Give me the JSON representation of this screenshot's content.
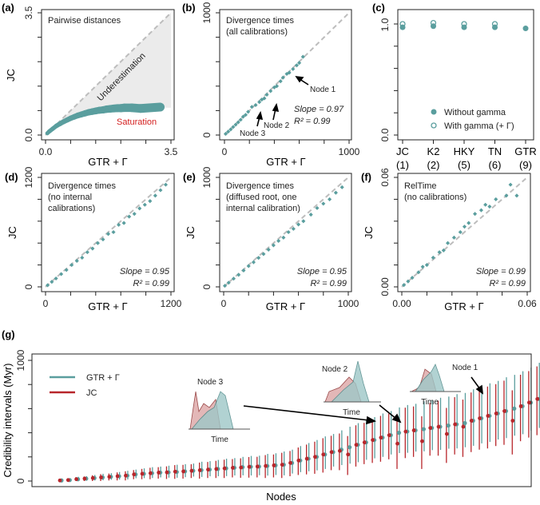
{
  "colors": {
    "teal": "#5a9e9e",
    "red": "#b8262b",
    "gray_dash": "#bdbdbd",
    "shade": "#ebebeb"
  },
  "chart_data": [
    {
      "id": "a",
      "panel_label": "(a)",
      "type": "scatter",
      "title": "Pairwise distances",
      "xlabel": "GTR + Γ",
      "ylabel": "JC",
      "xlim": [
        0,
        3.5
      ],
      "ylim": [
        0,
        3.5
      ],
      "xticks": [
        "0.0",
        "3.5"
      ],
      "yticks": [
        "0.0",
        "3.5"
      ],
      "region_labels": {
        "above": "Underestimation",
        "below": "Saturation"
      },
      "saturation_level": 0.78,
      "points": [
        [
          0.05,
          0.05
        ],
        [
          0.1,
          0.1
        ],
        [
          0.2,
          0.18
        ],
        [
          0.3,
          0.26
        ],
        [
          0.4,
          0.32
        ],
        [
          0.5,
          0.38
        ],
        [
          0.6,
          0.43
        ],
        [
          0.7,
          0.48
        ],
        [
          0.8,
          0.52
        ],
        [
          0.9,
          0.56
        ],
        [
          1.0,
          0.59
        ],
        [
          1.1,
          0.62
        ],
        [
          1.2,
          0.65
        ],
        [
          1.3,
          0.67
        ],
        [
          1.4,
          0.69
        ],
        [
          1.5,
          0.71
        ],
        [
          1.6,
          0.72
        ],
        [
          1.7,
          0.74
        ],
        [
          1.8,
          0.75
        ],
        [
          1.9,
          0.76
        ],
        [
          2.0,
          0.77
        ],
        [
          2.1,
          0.77
        ],
        [
          2.2,
          0.78
        ],
        [
          2.4,
          0.78
        ],
        [
          2.65,
          0.76
        ],
        [
          3.2,
          0.8
        ]
      ]
    },
    {
      "id": "b",
      "panel_label": "(b)",
      "type": "scatter",
      "title": [
        "Divergence times",
        "(all calibrations)"
      ],
      "xlabel": "GTR + Γ",
      "ylabel": "JC",
      "xlim": [
        0,
        1000
      ],
      "ylim": [
        0,
        1000
      ],
      "xticks": [
        "0",
        "1000"
      ],
      "yticks": [
        "0",
        "1000"
      ],
      "slope": "Slope = 0.97",
      "r2": "R² = 0.99",
      "annotations": [
        "Node 1",
        "Node 2",
        "Node 3"
      ],
      "points": [
        [
          10,
          10
        ],
        [
          30,
          28
        ],
        [
          50,
          46
        ],
        [
          70,
          66
        ],
        [
          90,
          85
        ],
        [
          110,
          104
        ],
        [
          130,
          125
        ],
        [
          150,
          150
        ],
        [
          170,
          165
        ],
        [
          190,
          190
        ],
        [
          220,
          230
        ],
        [
          250,
          245
        ],
        [
          280,
          270
        ],
        [
          300,
          290
        ],
        [
          320,
          300
        ],
        [
          340,
          330
        ],
        [
          370,
          360
        ],
        [
          400,
          390
        ],
        [
          420,
          400
        ],
        [
          450,
          440
        ],
        [
          470,
          470
        ],
        [
          500,
          500
        ],
        [
          520,
          510
        ],
        [
          550,
          540
        ],
        [
          580,
          570
        ],
        [
          600,
          590
        ],
        [
          630,
          640
        ]
      ]
    },
    {
      "id": "c",
      "panel_label": "(c)",
      "type": "scatter",
      "categories": [
        "JC",
        "K2",
        "HKY",
        "TN",
        "GTR"
      ],
      "category_params": [
        "(1)",
        "(2)",
        "(5)",
        "(6)",
        "(9)"
      ],
      "ylim": [
        0,
        1.0
      ],
      "yticks": [
        "0.0",
        "1.0"
      ],
      "legend": [
        "Without gamma",
        "With gamma (+ Γ)"
      ],
      "legend_position": "bottom-right",
      "series": [
        {
          "name": "Without gamma",
          "values": [
            0.97,
            0.98,
            0.97,
            0.97,
            0.96
          ]
        },
        {
          "name": "With gamma (+ Γ)",
          "values": [
            1.0,
            1.01,
            1.0,
            1.0,
            null
          ]
        }
      ]
    },
    {
      "id": "d",
      "panel_label": "(d)",
      "type": "scatter",
      "title": [
        "Divergence times",
        "(no internal",
        "calibrations)"
      ],
      "xlabel": "GTR + Γ",
      "ylabel": "JC",
      "xlim": [
        0,
        1200
      ],
      "ylim": [
        0,
        1200
      ],
      "xticks": [
        "0",
        "1200"
      ],
      "yticks": [
        "0",
        "1200"
      ],
      "slope": "Slope = 0.95",
      "r2": "R² = 0.99",
      "points": [
        [
          20,
          18
        ],
        [
          60,
          55
        ],
        [
          100,
          92
        ],
        [
          150,
          140
        ],
        [
          200,
          185
        ],
        [
          250,
          240
        ],
        [
          300,
          285
        ],
        [
          350,
          320
        ],
        [
          400,
          380
        ],
        [
          450,
          420
        ],
        [
          500,
          480
        ],
        [
          550,
          520
        ],
        [
          600,
          580
        ],
        [
          650,
          600
        ],
        [
          700,
          680
        ],
        [
          750,
          700
        ],
        [
          800,
          770
        ],
        [
          850,
          800
        ],
        [
          900,
          860
        ],
        [
          950,
          900
        ],
        [
          1000,
          940
        ],
        [
          1050,
          1000
        ],
        [
          1100,
          1060
        ],
        [
          1150,
          1120
        ]
      ]
    },
    {
      "id": "e",
      "panel_label": "(e)",
      "type": "scatter",
      "title": [
        "Divergence times",
        "(diffused root, one",
        "internal calibration)"
      ],
      "xlabel": "GTR + Γ",
      "ylabel": "JC",
      "xlim": [
        0,
        1000
      ],
      "ylim": [
        0,
        1000
      ],
      "xticks": [
        "0",
        "1000"
      ],
      "yticks": [
        "0",
        "1000"
      ],
      "slope": "Slope = 0.95",
      "r2": "R² = 0.99",
      "points": [
        [
          10,
          10
        ],
        [
          40,
          38
        ],
        [
          80,
          75
        ],
        [
          120,
          110
        ],
        [
          160,
          150
        ],
        [
          200,
          190
        ],
        [
          240,
          225
        ],
        [
          280,
          265
        ],
        [
          320,
          300
        ],
        [
          360,
          340
        ],
        [
          400,
          380
        ],
        [
          440,
          420
        ],
        [
          480,
          450
        ],
        [
          520,
          500
        ],
        [
          560,
          530
        ],
        [
          600,
          570
        ],
        [
          640,
          600
        ],
        [
          700,
          660
        ],
        [
          750,
          720
        ],
        [
          800,
          760
        ],
        [
          850,
          800
        ],
        [
          900,
          860
        ],
        [
          950,
          910
        ]
      ]
    },
    {
      "id": "f",
      "panel_label": "(f)",
      "type": "scatter",
      "title": [
        "RelTime",
        "(no calibrations)"
      ],
      "xlabel": "GTR + Γ",
      "ylabel": "JC",
      "xlim": [
        0,
        0.06
      ],
      "ylim": [
        0,
        0.06
      ],
      "xticks": [
        "0.00",
        "0.06"
      ],
      "yticks": [
        "0.00",
        "0.06"
      ],
      "slope": "Slope = 0.99",
      "r2": "R² = 0.99",
      "points": [
        [
          0.001,
          0.001
        ],
        [
          0.003,
          0.003
        ],
        [
          0.005,
          0.005
        ],
        [
          0.008,
          0.008
        ],
        [
          0.01,
          0.011
        ],
        [
          0.012,
          0.012
        ],
        [
          0.015,
          0.016
        ],
        [
          0.018,
          0.019
        ],
        [
          0.02,
          0.02
        ],
        [
          0.022,
          0.024
        ],
        [
          0.025,
          0.027
        ],
        [
          0.028,
          0.03
        ],
        [
          0.03,
          0.033
        ],
        [
          0.032,
          0.035
        ],
        [
          0.035,
          0.04
        ],
        [
          0.038,
          0.042
        ],
        [
          0.04,
          0.045
        ],
        [
          0.042,
          0.044
        ],
        [
          0.045,
          0.048
        ],
        [
          0.05,
          0.05
        ],
        [
          0.052,
          0.056
        ],
        [
          0.055,
          0.05
        ]
      ]
    },
    {
      "id": "g",
      "panel_label": "(g)",
      "type": "line",
      "xlabel": "Nodes",
      "ylabel": "Credibility intervals (Myr)",
      "ylim": [
        0,
        1000
      ],
      "yticks": [
        "0",
        "1000"
      ],
      "legend": [
        "GTR + Γ",
        "JC"
      ],
      "legend_position": "top-left",
      "annotations": [
        "Node 1",
        "Node 2",
        "Node 3"
      ],
      "inset_xlabel": "Time",
      "gtr_median": [
        5,
        8,
        15,
        20,
        25,
        30,
        35,
        40,
        45,
        55,
        60,
        65,
        70,
        72,
        75,
        80,
        85,
        90,
        95,
        100,
        105,
        110,
        115,
        118,
        120,
        125,
        130,
        135,
        150,
        170,
        185,
        200,
        220,
        240,
        260,
        280,
        300,
        320,
        340,
        360,
        380,
        400,
        410,
        420,
        430,
        440,
        450,
        460,
        470,
        480,
        500,
        520,
        540,
        560,
        580,
        600,
        620,
        650,
        680,
        710
      ],
      "jc_median": [
        5,
        8,
        15,
        20,
        25,
        30,
        35,
        40,
        45,
        55,
        60,
        65,
        70,
        72,
        78,
        80,
        85,
        90,
        95,
        100,
        105,
        110,
        112,
        118,
        120,
        125,
        130,
        135,
        150,
        170,
        185,
        200,
        220,
        240,
        250,
        220,
        300,
        320,
        340,
        360,
        380,
        310,
        410,
        420,
        330,
        440,
        450,
        390,
        470,
        450,
        500,
        520,
        540,
        560,
        580,
        500,
        620,
        650,
        680,
        710
      ],
      "half_width": [
        10,
        15,
        20,
        20,
        25,
        30,
        30,
        35,
        40,
        40,
        45,
        50,
        50,
        55,
        60,
        60,
        60,
        70,
        70,
        75,
        80,
        80,
        85,
        90,
        90,
        100,
        100,
        110,
        110,
        120,
        130,
        140,
        150,
        150,
        160,
        170,
        180,
        180,
        190,
        200,
        200,
        210,
        220,
        220,
        230,
        230,
        240,
        240,
        250,
        250,
        260,
        260,
        270,
        270,
        280,
        280,
        290,
        290,
        300,
        300
      ]
    }
  ]
}
